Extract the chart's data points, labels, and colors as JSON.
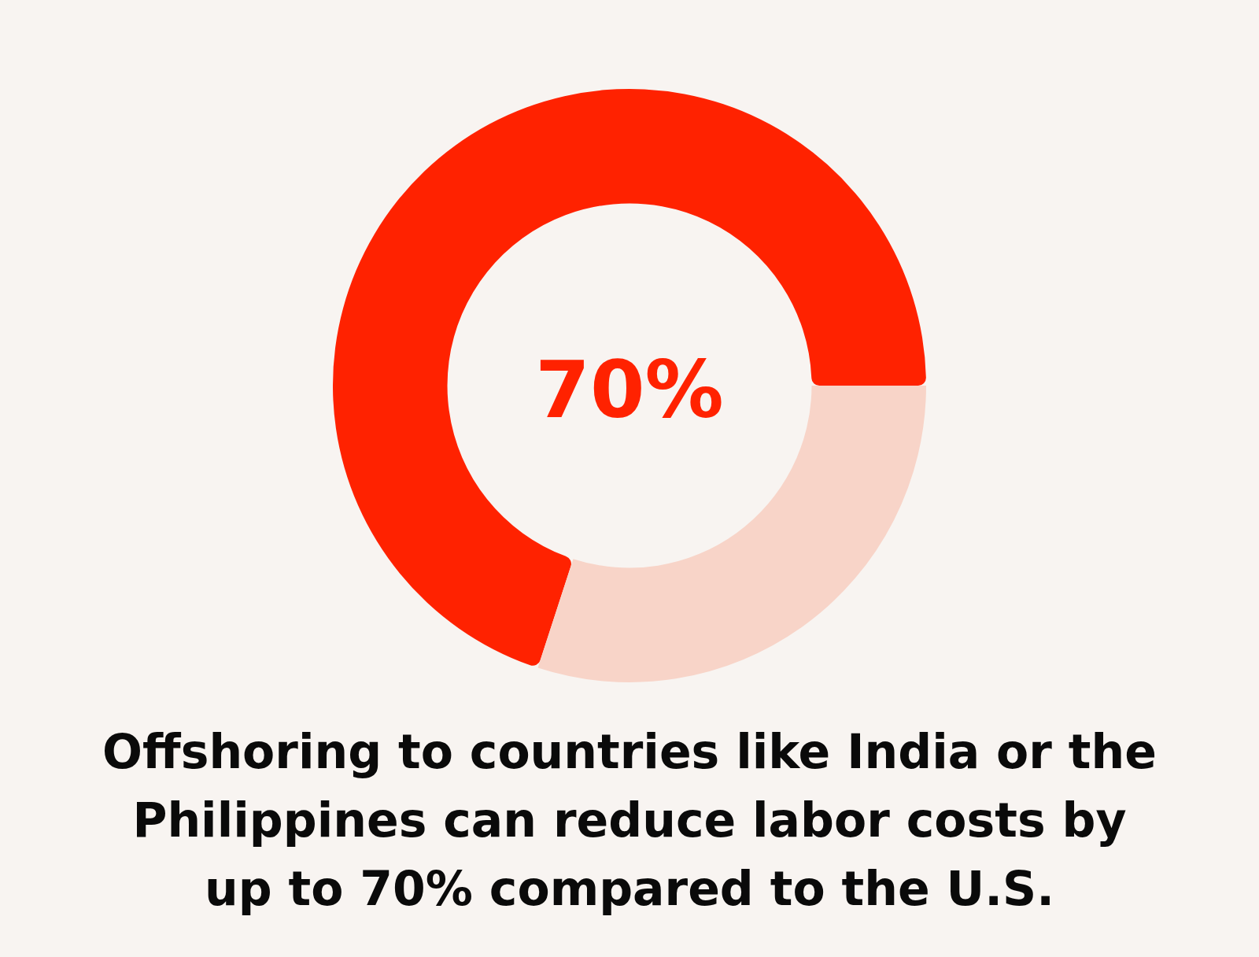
{
  "chart_data": {
    "type": "donut",
    "title": "Offshoring to countries like India or the Philippines can reduce labor costs by up to 70% compared to the U.S.",
    "categories": [
      null,
      null
    ],
    "values": [
      70,
      30
    ],
    "colors": [
      "#ff2200",
      "#f8d4c8"
    ],
    "annotations": [
      "70%"
    ]
  }
}
